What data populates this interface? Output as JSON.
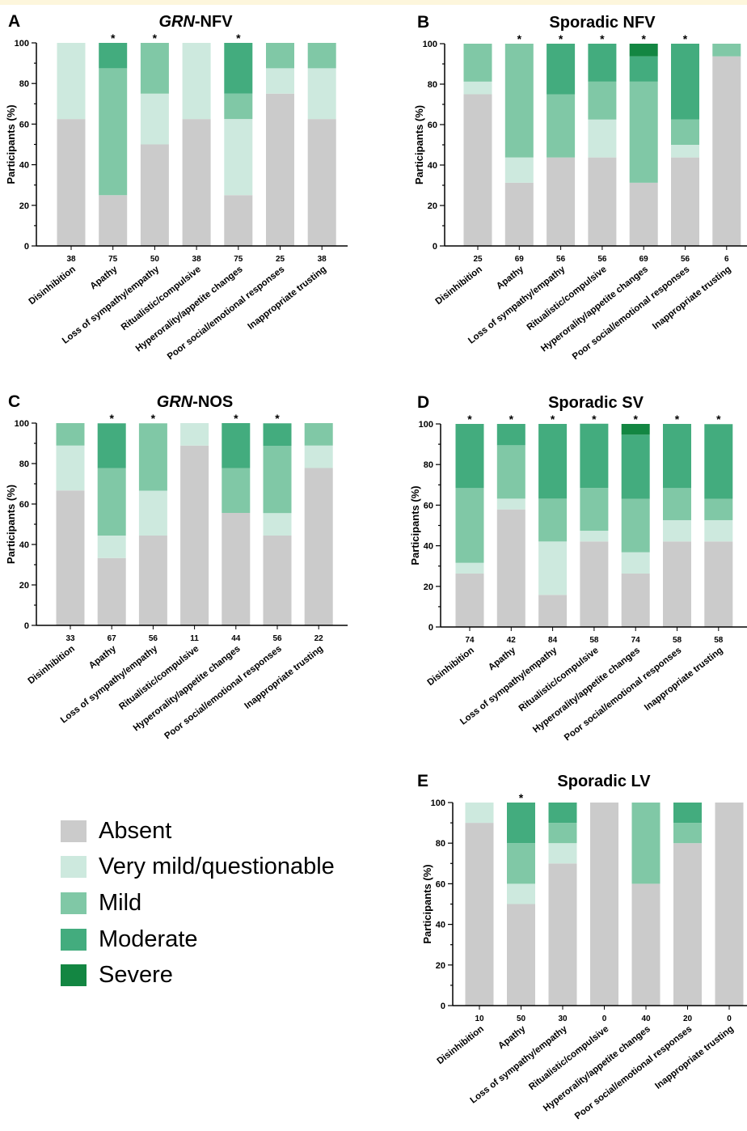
{
  "colors": {
    "Absent": "#cbcbcb",
    "Very mild/questionable": "#cde9de",
    "Mild": "#80c8a6",
    "Moderate": "#43ac7e",
    "Severe": "#138642"
  },
  "legend": {
    "items": [
      {
        "label": "Absent",
        "key": "Absent"
      },
      {
        "label": "Very mild/questionable",
        "key": "Very mild/questionable"
      },
      {
        "label": "Mild",
        "key": "Mild"
      },
      {
        "label": "Moderate",
        "key": "Moderate"
      },
      {
        "label": "Severe",
        "key": "Severe"
      }
    ]
  },
  "chart_data": [
    {
      "panel_letter": "A",
      "title_italic": "GRN",
      "title_rest": "-NFV",
      "type": "bar",
      "stacked": true,
      "ylabel": "Participants (%)",
      "ylim": [
        0,
        100
      ],
      "yticks": [
        "0",
        "20",
        "40",
        "60",
        "80",
        "100"
      ],
      "categories": [
        "Disinhibition",
        "Apathy",
        "Loss of sympathy/empathy",
        "Ritualistic/compulsive",
        "Hyperorality/appetite changes",
        "Poor social/emotional responses",
        "Inappropriate trusting"
      ],
      "counts": [
        "38",
        "75",
        "50",
        "38",
        "75",
        "25",
        "38"
      ],
      "significance": [
        "",
        "*",
        "*",
        "",
        "*",
        "",
        ""
      ],
      "series": [
        {
          "name": "Absent",
          "values": [
            62.5,
            25,
            50,
            62.5,
            25,
            75,
            62.5
          ]
        },
        {
          "name": "Very mild/questionable",
          "values": [
            37.5,
            0,
            25,
            37.5,
            37.5,
            12.5,
            25
          ]
        },
        {
          "name": "Mild",
          "values": [
            0,
            62.5,
            25,
            0,
            12.5,
            12.5,
            12.5
          ]
        },
        {
          "name": "Moderate",
          "values": [
            0,
            12.5,
            0,
            0,
            25,
            0,
            0
          ]
        },
        {
          "name": "Severe",
          "values": [
            0,
            0,
            0,
            0,
            0,
            0,
            0
          ]
        }
      ]
    },
    {
      "panel_letter": "B",
      "title_italic": "",
      "title_rest": "Sporadic NFV",
      "type": "bar",
      "stacked": true,
      "ylabel": "Participants (%)",
      "ylim": [
        0,
        100
      ],
      "yticks": [
        "0",
        "20",
        "40",
        "60",
        "80",
        "100"
      ],
      "categories": [
        "Disinhibition",
        "Apathy",
        "Loss of sympathy/empathy",
        "Ritualistic/compulsive",
        "Hyperorality/appetite changes",
        "Poor social/emotional responses",
        "Inappropriate trusting"
      ],
      "counts": [
        "25",
        "69",
        "56",
        "56",
        "69",
        "56",
        "6"
      ],
      "significance": [
        "",
        "*",
        "*",
        "*",
        "*",
        "*",
        ""
      ],
      "series": [
        {
          "name": "Absent",
          "values": [
            75,
            31.25,
            43.75,
            43.75,
            31.25,
            43.75,
            93.75
          ]
        },
        {
          "name": "Very mild/questionable",
          "values": [
            6.25,
            12.5,
            0,
            18.75,
            0,
            6.25,
            0
          ]
        },
        {
          "name": "Mild",
          "values": [
            18.75,
            56.25,
            31.25,
            18.75,
            50,
            12.5,
            6.25
          ]
        },
        {
          "name": "Moderate",
          "values": [
            0,
            0,
            25,
            18.75,
            12.5,
            37.5,
            0
          ]
        },
        {
          "name": "Severe",
          "values": [
            0,
            0,
            0,
            0,
            6.25,
            0,
            0
          ]
        }
      ]
    },
    {
      "panel_letter": "C",
      "title_italic": "GRN",
      "title_rest": "-NOS",
      "type": "bar",
      "stacked": true,
      "ylabel": "Participants (%)",
      "ylim": [
        0,
        100
      ],
      "yticks": [
        "0",
        "20",
        "40",
        "60",
        "80",
        "100"
      ],
      "categories": [
        "Disinhibition",
        "Apathy",
        "Loss of sympathy/empathy",
        "Ritualistic/compulsive",
        "Hyperorality/appetite changes",
        "Poor social/emotional responses",
        "Inappropriate trusting"
      ],
      "counts": [
        "33",
        "67",
        "56",
        "11",
        "44",
        "56",
        "22"
      ],
      "significance": [
        "",
        "*",
        "*",
        "",
        "*",
        "*",
        ""
      ],
      "series": [
        {
          "name": "Absent",
          "values": [
            66.7,
            33.3,
            44.4,
            88.9,
            55.6,
            44.4,
            77.8
          ]
        },
        {
          "name": "Very mild/questionable",
          "values": [
            22.2,
            11.1,
            22.2,
            11.1,
            0,
            11.1,
            11.1
          ]
        },
        {
          "name": "Mild",
          "values": [
            11.1,
            33.3,
            33.3,
            0,
            22.2,
            33.3,
            11.1
          ]
        },
        {
          "name": "Moderate",
          "values": [
            0,
            22.2,
            0,
            0,
            22.2,
            11.1,
            0
          ]
        },
        {
          "name": "Severe",
          "values": [
            0,
            0,
            0,
            0,
            0,
            0,
            0
          ]
        }
      ]
    },
    {
      "panel_letter": "D",
      "title_italic": "",
      "title_rest": "Sporadic SV",
      "type": "bar",
      "stacked": true,
      "ylabel": "Participants (%)",
      "ylim": [
        0,
        100
      ],
      "yticks": [
        "0",
        "20",
        "40",
        "60",
        "80",
        "100"
      ],
      "categories": [
        "Disinhibition",
        "Apathy",
        "Loss of sympathy/empathy",
        "Ritualistic/compulsive",
        "Hyperorality/appetite changes",
        "Poor social/emotional responses",
        "Inappropriate trusting"
      ],
      "counts": [
        "74",
        "42",
        "84",
        "58",
        "74",
        "58",
        "58"
      ],
      "significance": [
        "*",
        "*",
        "*",
        "*",
        "*",
        "*",
        "*"
      ],
      "series": [
        {
          "name": "Absent",
          "values": [
            26.3,
            57.9,
            15.8,
            42.1,
            26.3,
            42.1,
            42.1
          ]
        },
        {
          "name": "Very mild/questionable",
          "values": [
            5.3,
            5.3,
            26.3,
            5.3,
            10.5,
            10.5,
            10.5
          ]
        },
        {
          "name": "Mild",
          "values": [
            36.8,
            26.3,
            21.1,
            21.1,
            26.3,
            15.8,
            10.5
          ]
        },
        {
          "name": "Moderate",
          "values": [
            31.6,
            10.5,
            36.8,
            31.6,
            31.6,
            31.6,
            36.8
          ]
        },
        {
          "name": "Severe",
          "values": [
            0,
            0,
            0,
            0,
            5.3,
            0,
            0
          ]
        }
      ]
    },
    {
      "panel_letter": "E",
      "title_italic": "",
      "title_rest": "Sporadic LV",
      "type": "bar",
      "stacked": true,
      "ylabel": "Participants (%)",
      "ylim": [
        0,
        100
      ],
      "yticks": [
        "0",
        "20",
        "40",
        "60",
        "80",
        "100"
      ],
      "categories": [
        "Disinhibition",
        "Apathy",
        "Loss of sympathy/empathy",
        "Ritualistic/compulsive",
        "Hyperorality/appetite changes",
        "Poor social/emotional responses",
        "Inappropriate trusting"
      ],
      "counts": [
        "10",
        "50",
        "30",
        "0",
        "40",
        "20",
        "0"
      ],
      "significance": [
        "",
        "*",
        "",
        "",
        "",
        "",
        ""
      ],
      "series": [
        {
          "name": "Absent",
          "values": [
            90,
            50,
            70,
            100,
            60,
            80,
            100
          ]
        },
        {
          "name": "Very mild/questionable",
          "values": [
            10,
            10,
            10,
            0,
            0,
            0,
            0
          ]
        },
        {
          "name": "Mild",
          "values": [
            0,
            20,
            10,
            0,
            40,
            10,
            0
          ]
        },
        {
          "name": "Moderate",
          "values": [
            0,
            20,
            10,
            0,
            0,
            10,
            0
          ]
        },
        {
          "name": "Severe",
          "values": [
            0,
            0,
            0,
            0,
            0,
            0,
            0
          ]
        }
      ]
    }
  ]
}
